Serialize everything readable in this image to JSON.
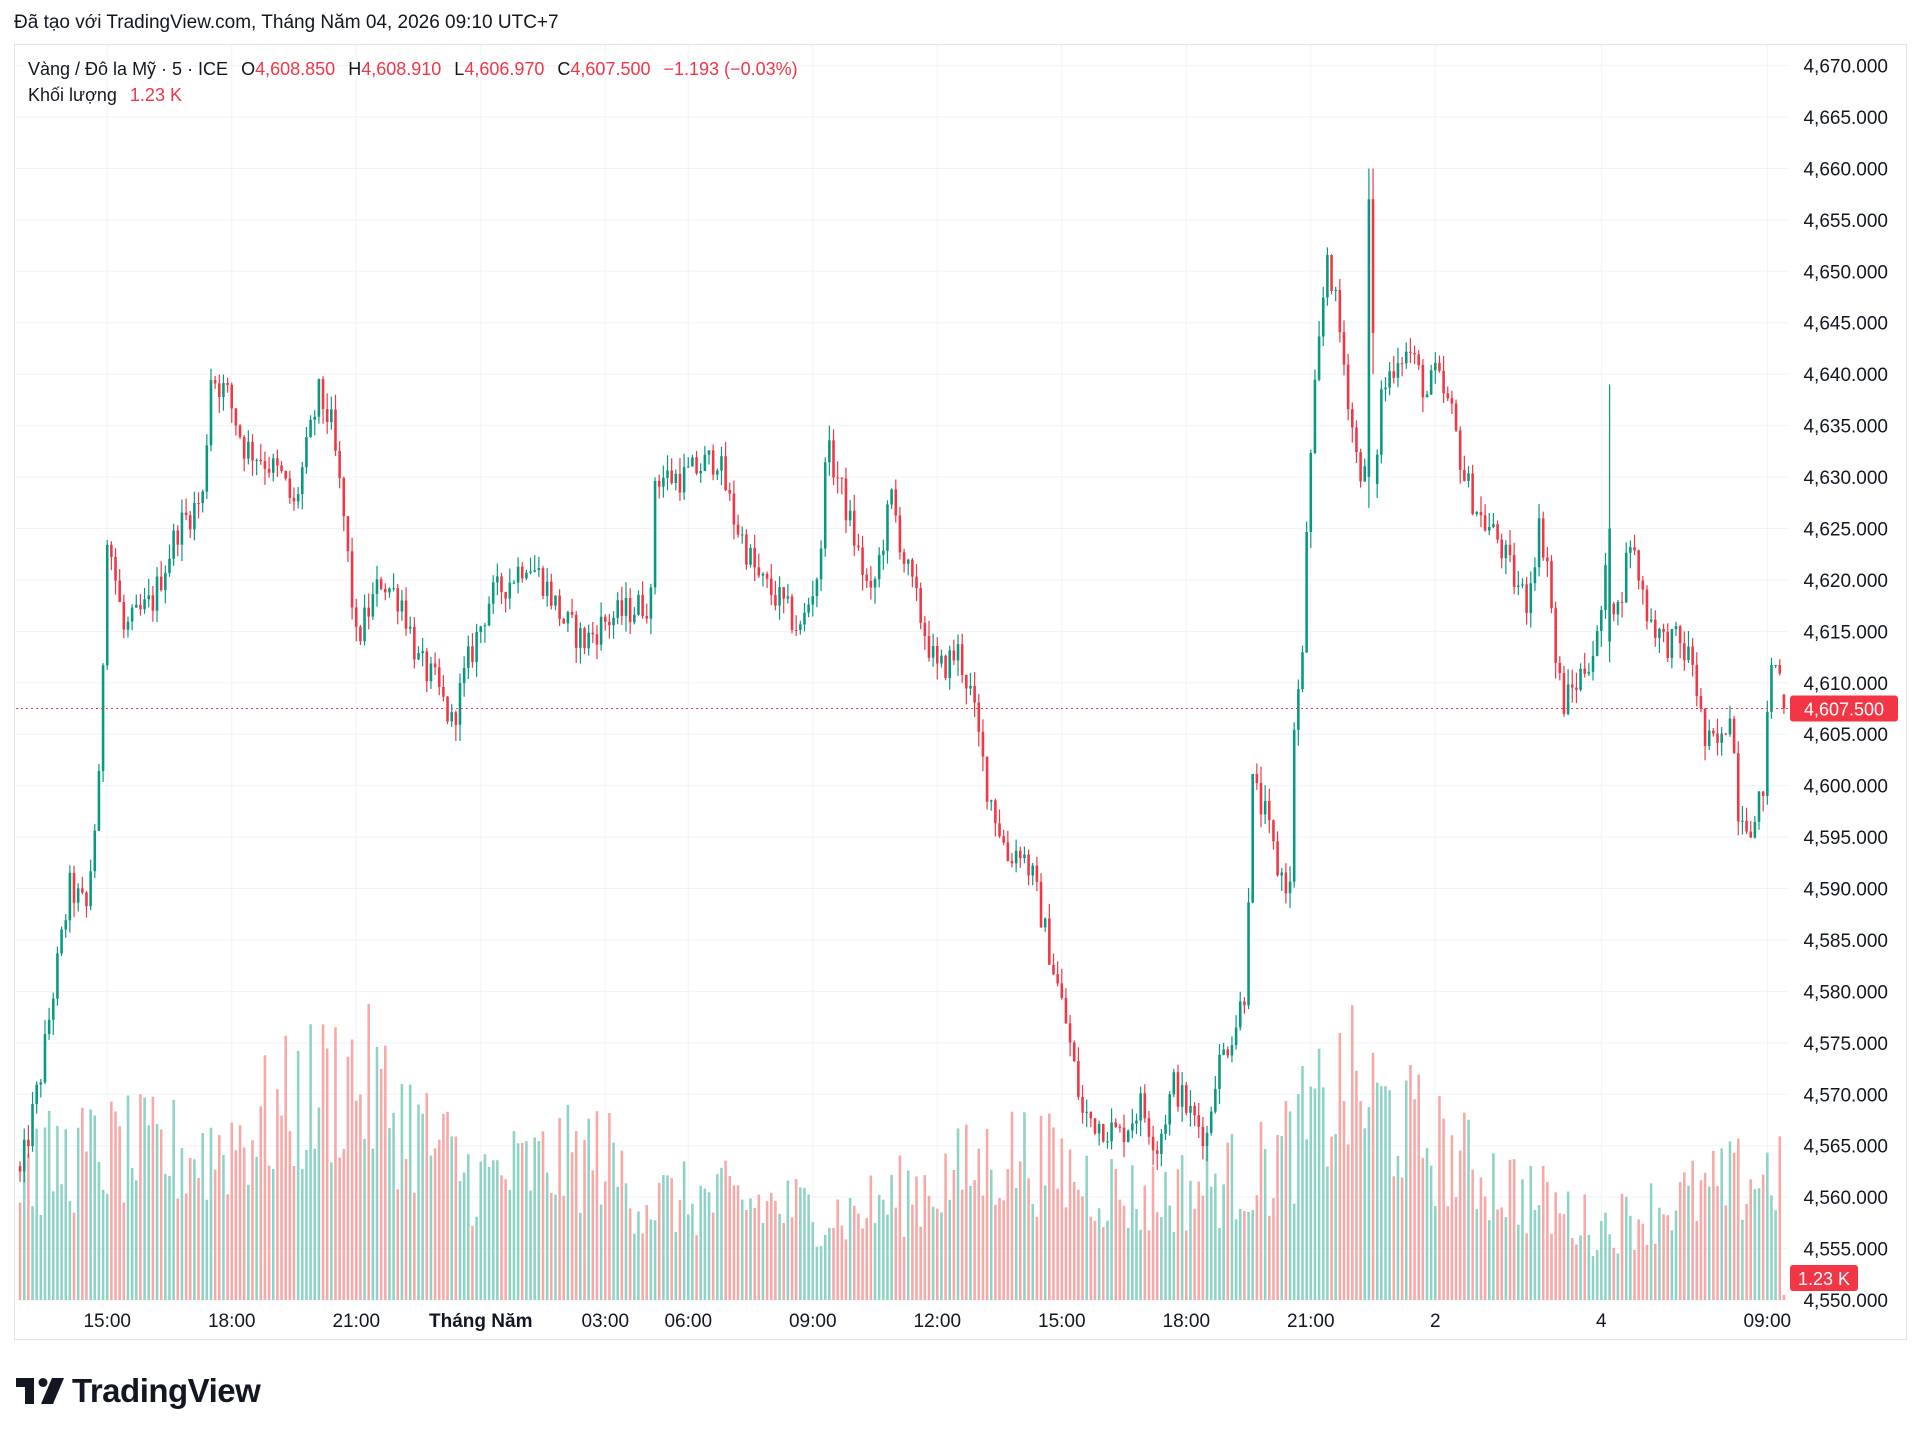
{
  "caption": "Đã tạo với TradingView.com, Tháng Năm 04, 2026 09:10 UTC+7",
  "legend": {
    "symbol": "Vàng / Đô la Mỹ · 5 · ICE",
    "o_label": "O",
    "o_value": "4,608.850",
    "h_label": "H",
    "h_value": "4,608.910",
    "l_label": "L",
    "l_value": "4,606.970",
    "c_label": "C",
    "c_value": "4,607.500",
    "change": "−1.193 (−0.03%)",
    "volume_label": "Khối lượng",
    "volume_value": "1.23 K"
  },
  "logo_text": "TradingView",
  "chart_data": {
    "type": "candlestick",
    "ylim": [
      4550,
      4672
    ],
    "y_ticks": [
      "4,670.000",
      "4,665.000",
      "4,660.000",
      "4,655.000",
      "4,650.000",
      "4,645.000",
      "4,640.000",
      "4,635.000",
      "4,630.000",
      "4,625.000",
      "4,620.000",
      "4,615.000",
      "4,610.000",
      "4,605.000",
      "4,600.000",
      "4,595.000",
      "4,590.000",
      "4,585.000",
      "4,580.000",
      "4,575.000",
      "4,570.000",
      "4,565.000",
      "4,560.000",
      "4,555.000",
      "4,550.000"
    ],
    "x_ticks": [
      {
        "label": "15:00",
        "i": 21,
        "bold": false
      },
      {
        "label": "18:00",
        "i": 51,
        "bold": false
      },
      {
        "label": "21:00",
        "i": 81,
        "bold": false
      },
      {
        "label": "Tháng Năm",
        "i": 111,
        "bold": true
      },
      {
        "label": "03:00",
        "i": 141,
        "bold": false
      },
      {
        "label": "06:00",
        "i": 161,
        "bold": false
      },
      {
        "label": "09:00",
        "i": 191,
        "bold": false
      },
      {
        "label": "12:00",
        "i": 221,
        "bold": false
      },
      {
        "label": "15:00",
        "i": 251,
        "bold": false
      },
      {
        "label": "18:00",
        "i": 281,
        "bold": false
      },
      {
        "label": "21:00",
        "i": 311,
        "bold": false
      },
      {
        "label": "2",
        "i": 341,
        "bold": false
      },
      {
        "label": "4",
        "i": 381,
        "bold": false
      },
      {
        "label": "09:00",
        "i": 421,
        "bold": false
      }
    ],
    "anchors": [
      [
        0,
        4562
      ],
      [
        5,
        4572
      ],
      [
        8,
        4580
      ],
      [
        12,
        4590
      ],
      [
        16,
        4588
      ],
      [
        19,
        4600
      ],
      [
        21,
        4625
      ],
      [
        25,
        4615
      ],
      [
        32,
        4618
      ],
      [
        38,
        4625
      ],
      [
        44,
        4628
      ],
      [
        46,
        4640
      ],
      [
        50,
        4638
      ],
      [
        54,
        4633
      ],
      [
        58,
        4632
      ],
      [
        63,
        4630
      ],
      [
        66,
        4627
      ],
      [
        72,
        4638
      ],
      [
        75,
        4635
      ],
      [
        78,
        4626
      ],
      [
        81,
        4614
      ],
      [
        87,
        4620
      ],
      [
        92,
        4618
      ],
      [
        96,
        4612
      ],
      [
        100,
        4610
      ],
      [
        104,
        4606
      ],
      [
        108,
        4612
      ],
      [
        113,
        4618
      ],
      [
        118,
        4620
      ],
      [
        122,
        4622
      ],
      [
        126,
        4620
      ],
      [
        131,
        4616
      ],
      [
        136,
        4614
      ],
      [
        141,
        4616
      ],
      [
        152,
        4618
      ],
      [
        153,
        4630
      ],
      [
        160,
        4630
      ],
      [
        168,
        4632
      ],
      [
        172,
        4626
      ],
      [
        178,
        4620
      ],
      [
        183,
        4618
      ],
      [
        188,
        4615
      ],
      [
        193,
        4622
      ],
      [
        194,
        4633
      ],
      [
        197,
        4630
      ],
      [
        201,
        4624
      ],
      [
        205,
        4618
      ],
      [
        210,
        4628
      ],
      [
        213,
        4622
      ],
      [
        218,
        4615
      ],
      [
        221,
        4611
      ],
      [
        226,
        4613
      ],
      [
        229,
        4609
      ],
      [
        233,
        4600
      ],
      [
        238,
        4593
      ],
      [
        241,
        4594
      ],
      [
        244,
        4591
      ],
      [
        248,
        4584
      ],
      [
        252,
        4577
      ],
      [
        256,
        4568
      ],
      [
        261,
        4567
      ],
      [
        265,
        4566
      ],
      [
        270,
        4569
      ],
      [
        274,
        4565
      ],
      [
        278,
        4571
      ],
      [
        282,
        4568
      ],
      [
        286,
        4566
      ],
      [
        288,
        4572
      ],
      [
        293,
        4577
      ],
      [
        295,
        4580
      ],
      [
        297,
        4600
      ],
      [
        300,
        4597
      ],
      [
        303,
        4592
      ],
      [
        306,
        4590
      ],
      [
        307,
        4606
      ],
      [
        309,
        4612
      ],
      [
        310,
        4625
      ],
      [
        312,
        4638
      ],
      [
        315,
        4652
      ],
      [
        318,
        4644
      ],
      [
        322,
        4632
      ],
      [
        326,
        4628
      ],
      [
        328,
        4638
      ],
      [
        332,
        4642
      ],
      [
        335,
        4642
      ],
      [
        339,
        4638
      ],
      [
        341,
        4640
      ],
      [
        345,
        4636
      ],
      [
        348,
        4630
      ],
      [
        352,
        4626
      ],
      [
        356,
        4624
      ],
      [
        360,
        4620
      ],
      [
        363,
        4618
      ],
      [
        366,
        4625
      ],
      [
        368,
        4622
      ],
      [
        370,
        4612
      ],
      [
        372,
        4608
      ],
      [
        375,
        4610
      ],
      [
        380,
        4614
      ],
      [
        382,
        4620
      ],
      [
        385,
        4617
      ],
      [
        388,
        4624
      ],
      [
        392,
        4617
      ],
      [
        396,
        4614
      ],
      [
        399,
        4614
      ],
      [
        403,
        4612
      ],
      [
        406,
        4604
      ],
      [
        410,
        4604
      ],
      [
        412,
        4608
      ],
      [
        414,
        4598
      ],
      [
        418,
        4596
      ],
      [
        420,
        4600
      ],
      [
        422,
        4612
      ],
      [
        424,
        4611
      ],
      [
        425,
        4607.5
      ]
    ],
    "special_candles": [
      {
        "i": 325,
        "open": 4630,
        "high": 4660,
        "low": 4627,
        "close": 4657
      },
      {
        "i": 326,
        "open": 4657,
        "high": 4660,
        "low": 4640,
        "close": 4644
      },
      {
        "i": 383,
        "open": 4614,
        "high": 4639,
        "low": 4612,
        "close": 4625
      },
      {
        "i": 425,
        "open": 4608.85,
        "high": 4608.91,
        "low": 4606.97,
        "close": 4607.5
      }
    ],
    "n_candles": 426,
    "volume": {
      "max": 1.25,
      "base": 0.45,
      "tail": 0.28,
      "levels": [
        [
          0,
          0.55
        ],
        [
          20,
          0.62
        ],
        [
          45,
          0.62
        ],
        [
          80,
          0.95
        ],
        [
          110,
          0.5
        ],
        [
          140,
          0.62
        ],
        [
          150,
          0.42
        ],
        [
          170,
          0.42
        ],
        [
          200,
          0.36
        ],
        [
          240,
          0.62
        ],
        [
          270,
          0.42
        ],
        [
          300,
          0.55
        ],
        [
          320,
          0.9
        ],
        [
          345,
          0.6
        ],
        [
          380,
          0.3
        ],
        [
          400,
          0.42
        ],
        [
          424,
          0.55
        ]
      ]
    },
    "last_price": 4607.5,
    "last_price_label": "4,607.500",
    "last_volume_label": "1.23 K",
    "colors": {
      "up": "#089981",
      "down": "#f23645",
      "vol_up": "#8fd3c7",
      "vol_down": "#f7a9a7",
      "grid": "#f0f3fa",
      "text": "#131722"
    }
  }
}
